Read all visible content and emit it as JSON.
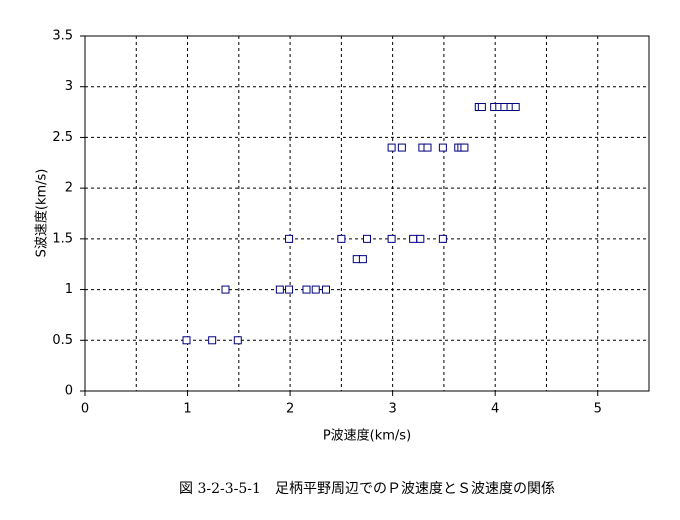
{
  "chart_data": {
    "type": "scatter",
    "x_label": "P波速度(km/s)",
    "y_label": "S波速度(km/s)",
    "caption": "図 3-2-3-5-1　足柄平野周辺でのＰ波速度とＳ波速度の関係",
    "xlim": [
      0,
      5.5
    ],
    "ylim": [
      0,
      3.5
    ],
    "xticks": [
      0,
      1,
      2,
      3,
      4,
      5
    ],
    "x_minor_grid": [
      0.5,
      1.5,
      2.5,
      3.5,
      4.5,
      5.5
    ],
    "yticks": [
      0,
      0.5,
      1,
      1.5,
      2,
      2.5,
      3,
      3.5
    ],
    "grid": true,
    "series": [
      {
        "color": "#000080",
        "x": [
          0.99,
          1.24,
          1.49,
          1.37,
          1.9,
          1.99,
          2.16,
          2.25,
          2.35,
          1.99,
          2.5,
          2.75,
          2.99,
          3.2,
          3.27,
          3.49,
          2.65,
          2.71,
          2.99,
          3.09,
          3.29,
          3.34,
          3.49,
          3.64,
          3.67,
          3.7,
          3.84,
          3.87,
          3.99,
          4.04,
          4.09,
          4.15,
          4.2
        ],
        "values": [
          0.5,
          0.5,
          0.5,
          1,
          1,
          1,
          1,
          1,
          1,
          1.5,
          1.5,
          1.5,
          1.5,
          1.5,
          1.5,
          1.5,
          1.3,
          1.3,
          2.4,
          2.4,
          2.4,
          2.4,
          2.4,
          2.4,
          2.4,
          2.4,
          2.8,
          2.8,
          2.8,
          2.8,
          2.8,
          2.8,
          2.8
        ]
      }
    ]
  }
}
